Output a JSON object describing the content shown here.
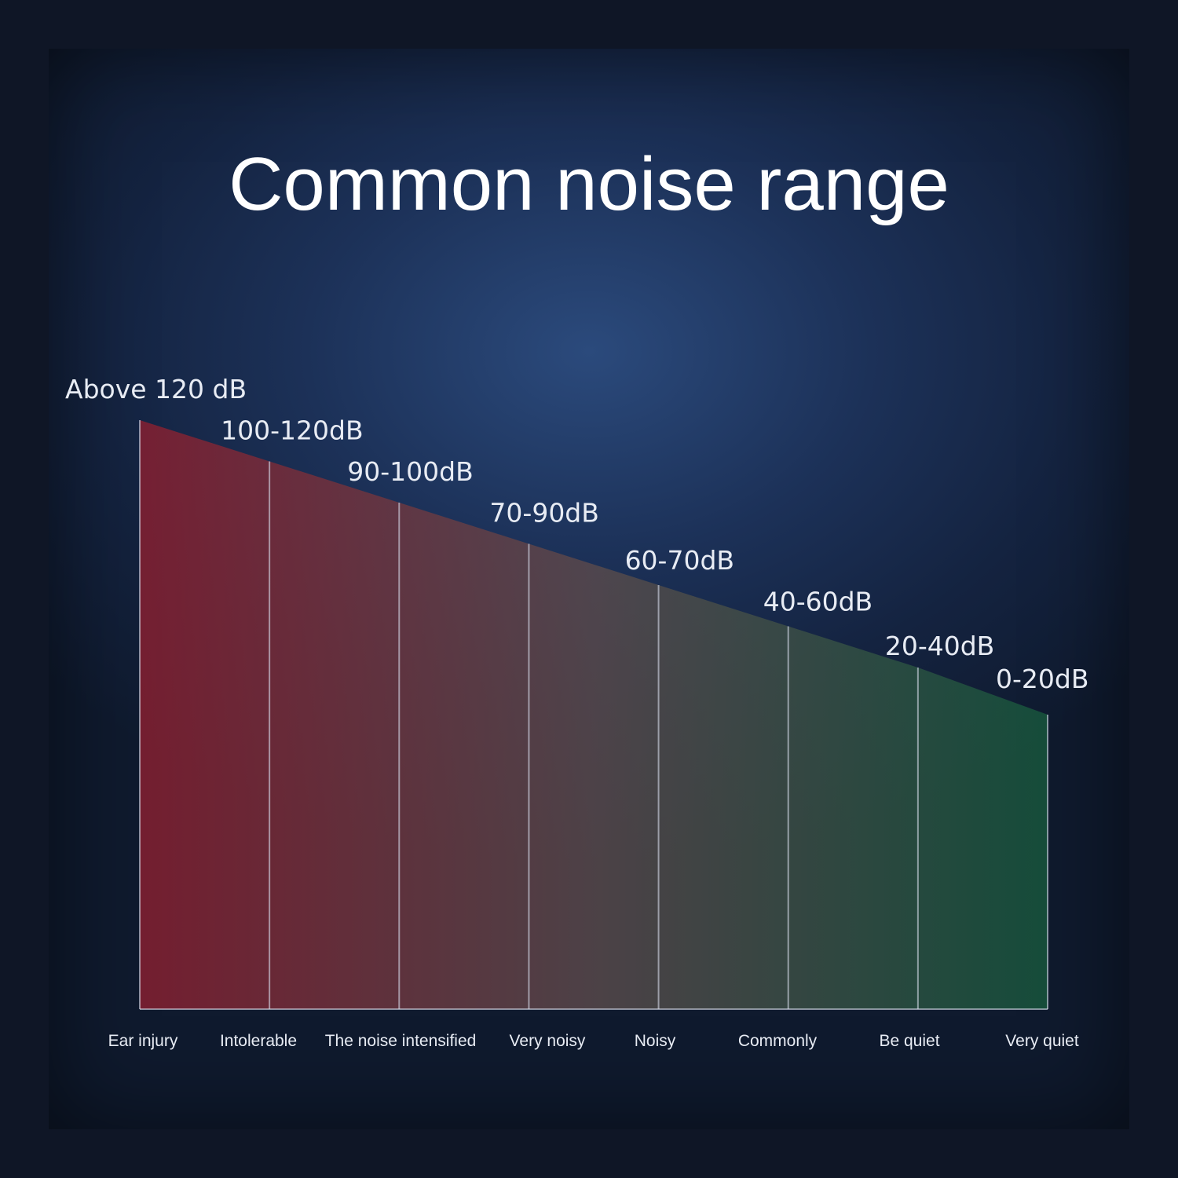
{
  "title": "Common noise range",
  "colors": {
    "high": "#8a1f30",
    "mid": "#5a4a4c",
    "low": "#17573d",
    "divider": "#d7dceb"
  },
  "chart_data": {
    "type": "area",
    "title": "Common noise range",
    "xlabel": "",
    "ylabel": "",
    "categories": [
      "Ear injury",
      "Intolerable",
      "The noise intensified",
      "Very noisy",
      "Noisy",
      "Commonly",
      "Be quiet",
      "Very quiet"
    ],
    "range_labels": [
      "Above 120 dB",
      "100-120dB",
      "90-100dB",
      "70-90dB",
      "60-70dB",
      "40-60dB",
      "20-40dB",
      "0-20dB"
    ],
    "relative_height": [
      1.0,
      0.93,
      0.86,
      0.79,
      0.72,
      0.65,
      0.58,
      0.5
    ],
    "grid": false,
    "legend": "none"
  }
}
